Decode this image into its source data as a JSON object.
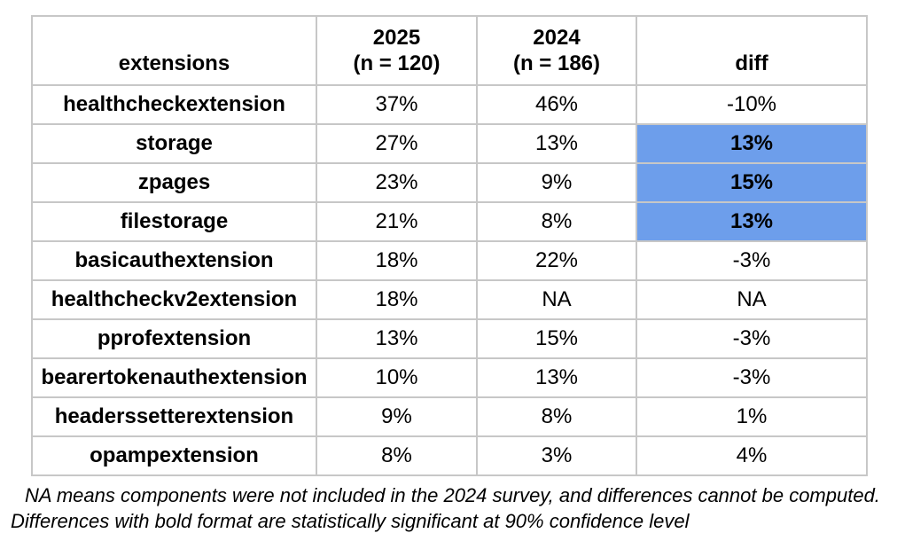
{
  "table": {
    "header": {
      "extensions": "extensions",
      "col2025_line1": "2025",
      "col2025_line2": "(n = 120)",
      "col2024_line1": "2024",
      "col2024_line2": "(n = 186)",
      "diff": "diff"
    },
    "rows": [
      {
        "extension": "healthcheckextension",
        "y2025": "37%",
        "y2024": "46%",
        "diff": "-10%",
        "significant": false
      },
      {
        "extension": "storage",
        "y2025": "27%",
        "y2024": "13%",
        "diff": "13%",
        "significant": true
      },
      {
        "extension": "zpages",
        "y2025": "23%",
        "y2024": "9%",
        "diff": "15%",
        "significant": true
      },
      {
        "extension": "filestorage",
        "y2025": "21%",
        "y2024": "8%",
        "diff": "13%",
        "significant": true
      },
      {
        "extension": "basicauthextension",
        "y2025": "18%",
        "y2024": "22%",
        "diff": "-3%",
        "significant": false
      },
      {
        "extension": "healthcheckv2extension",
        "y2025": "18%",
        "y2024": "NA",
        "diff": "NA",
        "significant": false
      },
      {
        "extension": "pprofextension",
        "y2025": "13%",
        "y2024": "15%",
        "diff": "-3%",
        "significant": false
      },
      {
        "extension": "bearertokenauthextension",
        "y2025": "10%",
        "y2024": "13%",
        "diff": "-3%",
        "significant": false
      },
      {
        "extension": "headerssetterextension",
        "y2025": "9%",
        "y2024": "8%",
        "diff": "1%",
        "significant": false
      },
      {
        "extension": "opampextension",
        "y2025": "8%",
        "y2024": "3%",
        "diff": "4%",
        "significant": false
      }
    ]
  },
  "footnotes": [
    "NA means components were not included in the 2024 survey, and differences cannot be computed.",
    "Differences with bold format are statistically significant at 90% confidence level"
  ],
  "colors": {
    "highlight": "#6d9eeb",
    "border": "#c7c7c7",
    "text": "#000000",
    "background": "#ffffff"
  },
  "chart_data": {
    "type": "table",
    "title": "Extension usage: 2025 vs 2024 survey",
    "columns": [
      "extensions",
      "2025 (n = 120)",
      "2024 (n = 186)",
      "diff"
    ],
    "rows": [
      [
        "healthcheckextension",
        "37%",
        "46%",
        "-10%"
      ],
      [
        "storage",
        "27%",
        "13%",
        "13%"
      ],
      [
        "zpages",
        "23%",
        "9%",
        "15%"
      ],
      [
        "filestorage",
        "21%",
        "8%",
        "13%"
      ],
      [
        "basicauthextension",
        "18%",
        "22%",
        "-3%"
      ],
      [
        "healthcheckv2extension",
        "18%",
        "NA",
        "NA"
      ],
      [
        "pprofextension",
        "13%",
        "15%",
        "-3%"
      ],
      [
        "bearertokenauthextension",
        "10%",
        "13%",
        "-3%"
      ],
      [
        "headerssetterextension",
        "9%",
        "8%",
        "1%"
      ],
      [
        "opampextension",
        "8%",
        "3%",
        "4%"
      ]
    ],
    "highlighted_diff_rows": [
      "storage",
      "zpages",
      "filestorage"
    ],
    "highlight_meaning": "bold diff = statistically significant at 90% confidence level",
    "notes": [
      "NA means components were not included in the 2024 survey, and differences cannot be computed.",
      "Differences with bold format are statistically significant at 90% confidence level"
    ]
  }
}
